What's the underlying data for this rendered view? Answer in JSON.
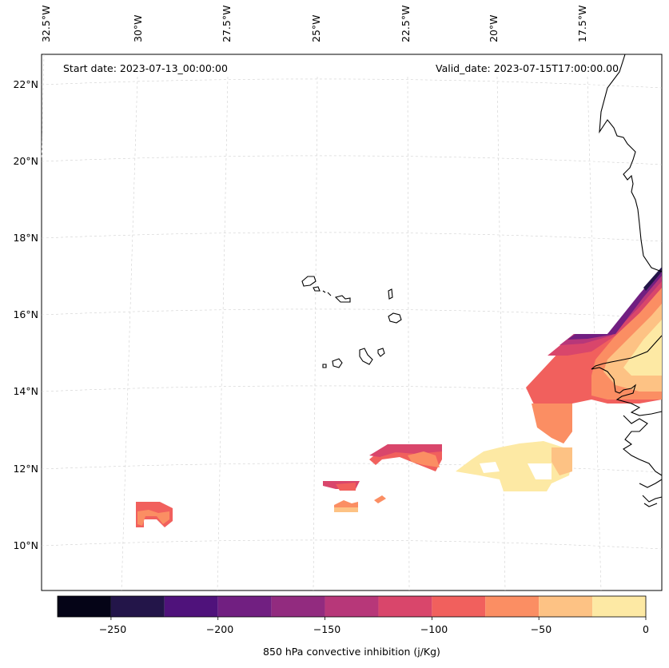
{
  "map": {
    "start_label": "Start date: 2023-07-13_00:00:00",
    "valid_label": "Valid_date: 2023-07-15T17:00:00.00",
    "lon_labels": [
      "32.5°W",
      "30°W",
      "27.5°W",
      "25°W",
      "22.5°W",
      "20°W",
      "17.5°W"
    ],
    "lat_labels": [
      "22°N",
      "20°N",
      "18°N",
      "16°N",
      "14°N",
      "12°N",
      "10°N"
    ]
  },
  "colorbar": {
    "label": "850 hPa convective inhibition (j/Kg)",
    "tick_labels": [
      "−250",
      "−200",
      "−150",
      "−100",
      "−50",
      "0"
    ],
    "levels": [
      -275,
      -250,
      -225,
      -200,
      -175,
      -150,
      -125,
      -100,
      -75,
      -50,
      -25,
      0
    ],
    "colors": [
      "#050417",
      "#231549",
      "#4f127b",
      "#711f81",
      "#922b7f",
      "#b73779",
      "#d9466b",
      "#f1605d",
      "#fb8e63",
      "#fdc284",
      "#fde9a4"
    ]
  }
}
